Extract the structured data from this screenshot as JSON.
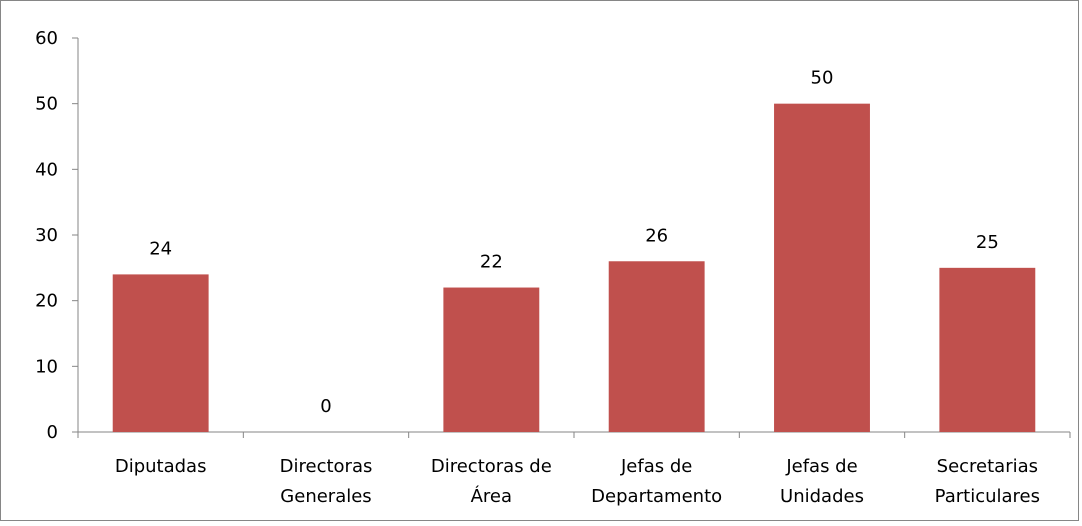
{
  "chart_data": {
    "type": "bar",
    "categories": [
      "Diputadas",
      "Directoras\nGenerales",
      "Directoras de\nÁrea",
      "Jefas de\nDepartamento",
      "Jefas de\nUnidades",
      "Secretarias\nParticulares"
    ],
    "values": [
      24,
      0,
      22,
      26,
      50,
      25
    ],
    "color": "#c0504d",
    "ylim": [
      0,
      60
    ],
    "yticks": [
      0,
      10,
      20,
      30,
      40,
      50,
      60
    ],
    "grid": false
  }
}
